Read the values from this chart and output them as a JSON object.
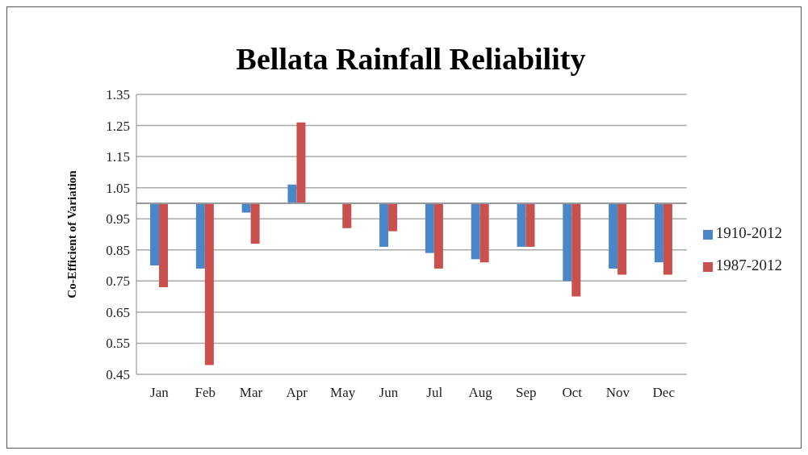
{
  "chart_data": {
    "type": "bar",
    "title": "Bellata Rainfall Reliability",
    "ylabel": "Co-Efficient of Variation",
    "categories": [
      "Jan",
      "Feb",
      "Mar",
      "Apr",
      "May",
      "Jun",
      "Jul",
      "Aug",
      "Sep",
      "Oct",
      "Nov",
      "Dec"
    ],
    "series": [
      {
        "name": "1910-2012",
        "color": "#4a86c8",
        "base": [
          1,
          1,
          1,
          1,
          null,
          1,
          1,
          1,
          1,
          1,
          1,
          1
        ],
        "values": [
          -0.2,
          -0.21,
          -0.03,
          0.06,
          null,
          -0.14,
          -0.16,
          -0.18,
          -0.14,
          -0.25,
          -0.21,
          -0.19
        ]
      },
      {
        "name": "1987-2012",
        "color": "#c9504c",
        "base": [
          1,
          1,
          1,
          1,
          1,
          1,
          1,
          1,
          1,
          1,
          1,
          1
        ],
        "values": [
          -0.27,
          -0.52,
          -0.13,
          0.26,
          -0.08,
          -0.09,
          -0.21,
          -0.19,
          -0.14,
          -0.3,
          -0.23,
          -0.23
        ]
      }
    ],
    "ref_lines": [
      {
        "axis": "y",
        "value": 1,
        "color": "#999999"
      }
    ],
    "ylim": [
      0.45,
      1.35
    ],
    "yticks": [
      {
        "value": 0.45,
        "label": "0.45"
      },
      {
        "value": 0.55,
        "label": "0.55"
      },
      {
        "value": 0.65,
        "label": "0.65"
      },
      {
        "value": 0.75,
        "label": "0.75"
      },
      {
        "value": 0.85,
        "label": "0.85"
      },
      {
        "value": 0.95,
        "label": "0.95"
      },
      {
        "value": 1.05,
        "label": "1.05"
      },
      {
        "value": 1.15,
        "label": "1.15"
      },
      {
        "value": 1.25,
        "label": "1.25"
      },
      {
        "value": 1.35,
        "label": "1.35"
      }
    ],
    "grid": "y",
    "legend": "right"
  }
}
